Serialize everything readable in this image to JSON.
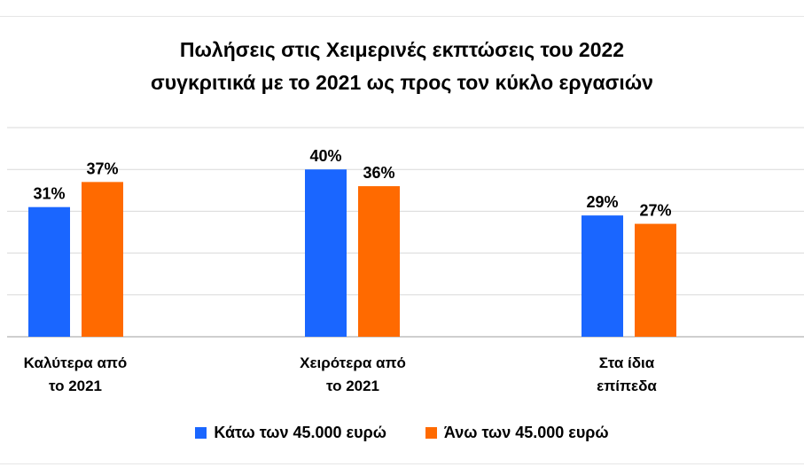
{
  "chart_data": {
    "type": "bar",
    "title_lines": [
      "Πωλήσεις στις Χειμερινές εκπτώσεις του 2022",
      "συγκριτικά με το 2021 ως προς τον κύκλο εργασιών"
    ],
    "categories": [
      [
        "Καλύτερα από",
        "το 2021"
      ],
      [
        "Χειρότερα από",
        "το 2021"
      ],
      [
        "Στα ίδια",
        "επίπεδα"
      ]
    ],
    "series": [
      {
        "name": "Κάτω των 45.000 ευρώ",
        "color": "#1a66ff",
        "values": [
          31,
          40,
          29
        ],
        "labels": [
          "31%",
          "40%",
          "29%"
        ]
      },
      {
        "name": "Άνω των 45.000 ευρώ",
        "color": "#ff6a00",
        "values": [
          37,
          36,
          27
        ],
        "labels": [
          "37%",
          "36%",
          "27%"
        ]
      }
    ],
    "ylim": [
      0,
      50
    ],
    "grid": true,
    "legend": "bottom"
  }
}
